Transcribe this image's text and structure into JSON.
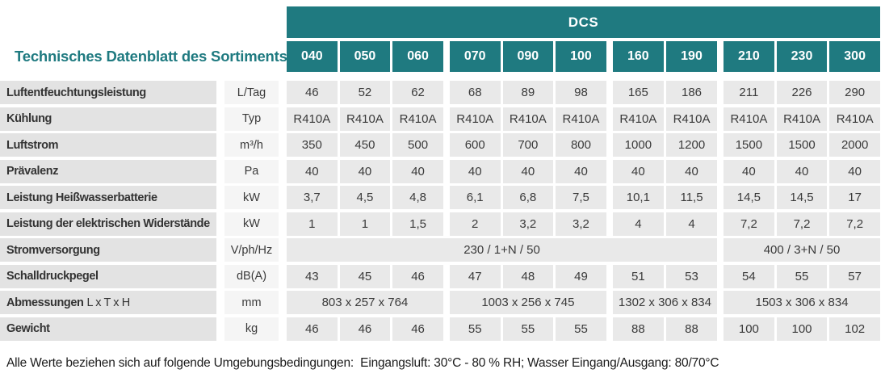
{
  "title": "Technisches Datenblatt des Sortiments",
  "table": {
    "group_header": "DCS",
    "models": [
      "040",
      "050",
      "060",
      "070",
      "090",
      "100",
      "160",
      "190",
      "210",
      "230",
      "300"
    ],
    "rows": [
      {
        "label": "Luftentfeuchtungsleistung",
        "label_suffix": "",
        "unit": "L/Tag",
        "values": [
          "46",
          "52",
          "62",
          "68",
          "89",
          "98",
          "165",
          "186",
          "211",
          "226",
          "290"
        ]
      },
      {
        "label": "Kühlung",
        "label_suffix": "",
        "unit": "Typ",
        "values": [
          "R410A",
          "R410A",
          "R410A",
          "R410A",
          "R410A",
          "R410A",
          "R410A",
          "R410A",
          "R410A",
          "R410A",
          "R410A"
        ]
      },
      {
        "label": "Luftstrom",
        "label_suffix": "",
        "unit": "m³/h",
        "values": [
          "350",
          "450",
          "500",
          "600",
          "700",
          "800",
          "1000",
          "1200",
          "1500",
          "1500",
          "2000"
        ]
      },
      {
        "label": "Prävalenz",
        "label_suffix": "",
        "unit": "Pa",
        "values": [
          "40",
          "40",
          "40",
          "40",
          "40",
          "40",
          "40",
          "40",
          "40",
          "40",
          "40"
        ]
      },
      {
        "label": "Leistung Heißwasserbatterie",
        "label_suffix": "",
        "unit": "kW",
        "values": [
          "3,7",
          "4,5",
          "4,8",
          "6,1",
          "6,8",
          "7,5",
          "10,1",
          "11,5",
          "14,5",
          "14,5",
          "17"
        ]
      },
      {
        "label": "Leistung der elektrischen Widerstände",
        "label_suffix": "",
        "unit": "kW",
        "values": [
          "1",
          "1",
          "1,5",
          "2",
          "3,2",
          "3,2",
          "4",
          "4",
          "7,2",
          "7,2",
          "7,2"
        ]
      },
      {
        "label": "Stromversorgung",
        "label_suffix": "",
        "unit": "V/ph/Hz",
        "spans": [
          {
            "span_cols": 8,
            "value": "230 / 1+N / 50"
          },
          {
            "span_cols": 3,
            "value": "400 / 3+N / 50"
          }
        ]
      },
      {
        "label": "Schalldruckpegel",
        "label_suffix": "",
        "unit": "dB(A)",
        "values": [
          "43",
          "45",
          "46",
          "47",
          "48",
          "49",
          "51",
          "53",
          "54",
          "55",
          "57"
        ]
      },
      {
        "label": "Abmessungen",
        "label_suffix": "L x T x H",
        "unit": "mm",
        "spans": [
          {
            "span_cols": 3,
            "value": "803 x 257 x 764"
          },
          {
            "span_cols": 3,
            "value": "1003 x 256 x 745"
          },
          {
            "span_cols": 2,
            "value": "1302 x 306 x 834"
          },
          {
            "span_cols": 3,
            "value": "1503 x 306 x 834"
          }
        ]
      },
      {
        "label": "Gewicht",
        "label_suffix": "",
        "unit": "kg",
        "values": [
          "46",
          "46",
          "46",
          "55",
          "55",
          "55",
          "88",
          "88",
          "100",
          "100",
          "102"
        ]
      }
    ]
  },
  "footnote": "Alle Werte beziehen sich auf folgende Umgebungsbedingungen:  Eingangsluft: 30°C - 80 % RH; Wasser Eingang/Ausgang: 80/70°C",
  "colors": {
    "teal": "#1f7a80",
    "row_label_bg": "#e3e3e3",
    "unit_bg": "#f5f5f5",
    "cell_bg": "#e9e9e9"
  }
}
